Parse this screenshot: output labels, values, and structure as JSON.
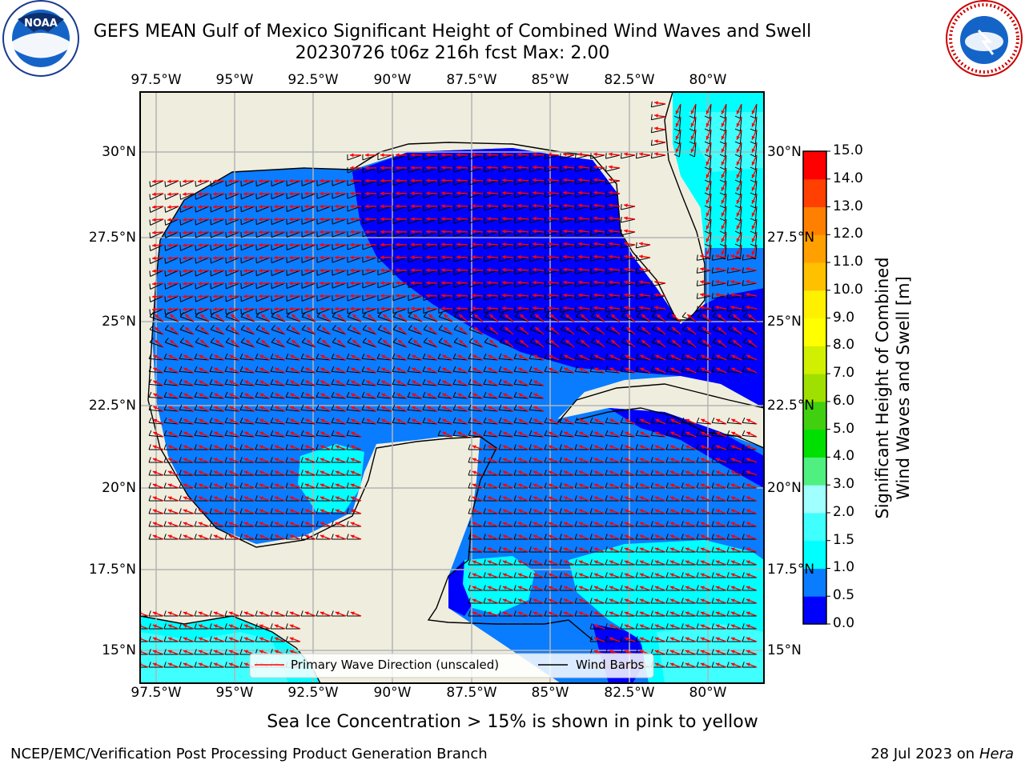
{
  "title": {
    "line1": "GEFS MEAN Gulf of Mexico Significant Height of Combined Wind Waves and Swell",
    "line2": "20230726 t06z 216h fcst   Max: 2.00"
  },
  "logos": {
    "left": "NOAA",
    "left_ring": "NATIONAL OCEANIC AND ATMOSPHERIC ADMINISTRATION · U.S. DEPARTMENT OF COMMERCE",
    "right_ring": "NATIONAL WEATHER SERVICE"
  },
  "axes": {
    "lon_labels": [
      "97.5°W",
      "95°W",
      "92.5°W",
      "90°W",
      "87.5°W",
      "85°W",
      "82.5°W",
      "80°W"
    ],
    "lat_labels_left": [
      "30°N",
      "27.5°N",
      "25°N",
      "22.5°N",
      "20°N",
      "17.5°N",
      "15°N"
    ],
    "lat_labels_right": [
      "30°N",
      "27.5°N",
      "25°N",
      "22.5°N",
      "20°N",
      "17.5°N",
      "15°N"
    ]
  },
  "legend": {
    "primary_label": "Primary Wave Direction (unscaled)",
    "barbs_label": "Wind Barbs"
  },
  "colorbar": {
    "label_line1": "Significant Height of Combined",
    "label_line2": "Wind Waves and Swell [m]",
    "ticks": [
      "0.0",
      "0.5",
      "1.0",
      "1.5",
      "2.0",
      "3.0",
      "4.0",
      "5.0",
      "6.0",
      "7.0",
      "8.0",
      "9.0",
      "10.0",
      "11.0",
      "12.0",
      "13.0",
      "14.0",
      "15.0"
    ],
    "colors": [
      "#0000ff",
      "#0a7cff",
      "#00ffff",
      "#40ffff",
      "#a0ffff",
      "#50f080",
      "#00e000",
      "#40d010",
      "#a0e000",
      "#d0f000",
      "#ffff00",
      "#fff000",
      "#ffc000",
      "#ffa000",
      "#ff8000",
      "#ff4000",
      "#ff0000"
    ]
  },
  "colors": {
    "land": "#efedde",
    "dark_blue": "#0000ff",
    "mid_blue": "#0a7cff",
    "cyan": "#00ffff",
    "light_cyan": "#40ffff",
    "arrow": "#ff0000",
    "barb": "#000000"
  },
  "caption": "Sea Ice Concentration > 15% is shown in pink to yellow",
  "footer": {
    "left": "NCEP/EMC/Verification Post Processing Product Generation Branch",
    "right_date": "28 Jul 2023 on ",
    "right_host": "Hera"
  }
}
